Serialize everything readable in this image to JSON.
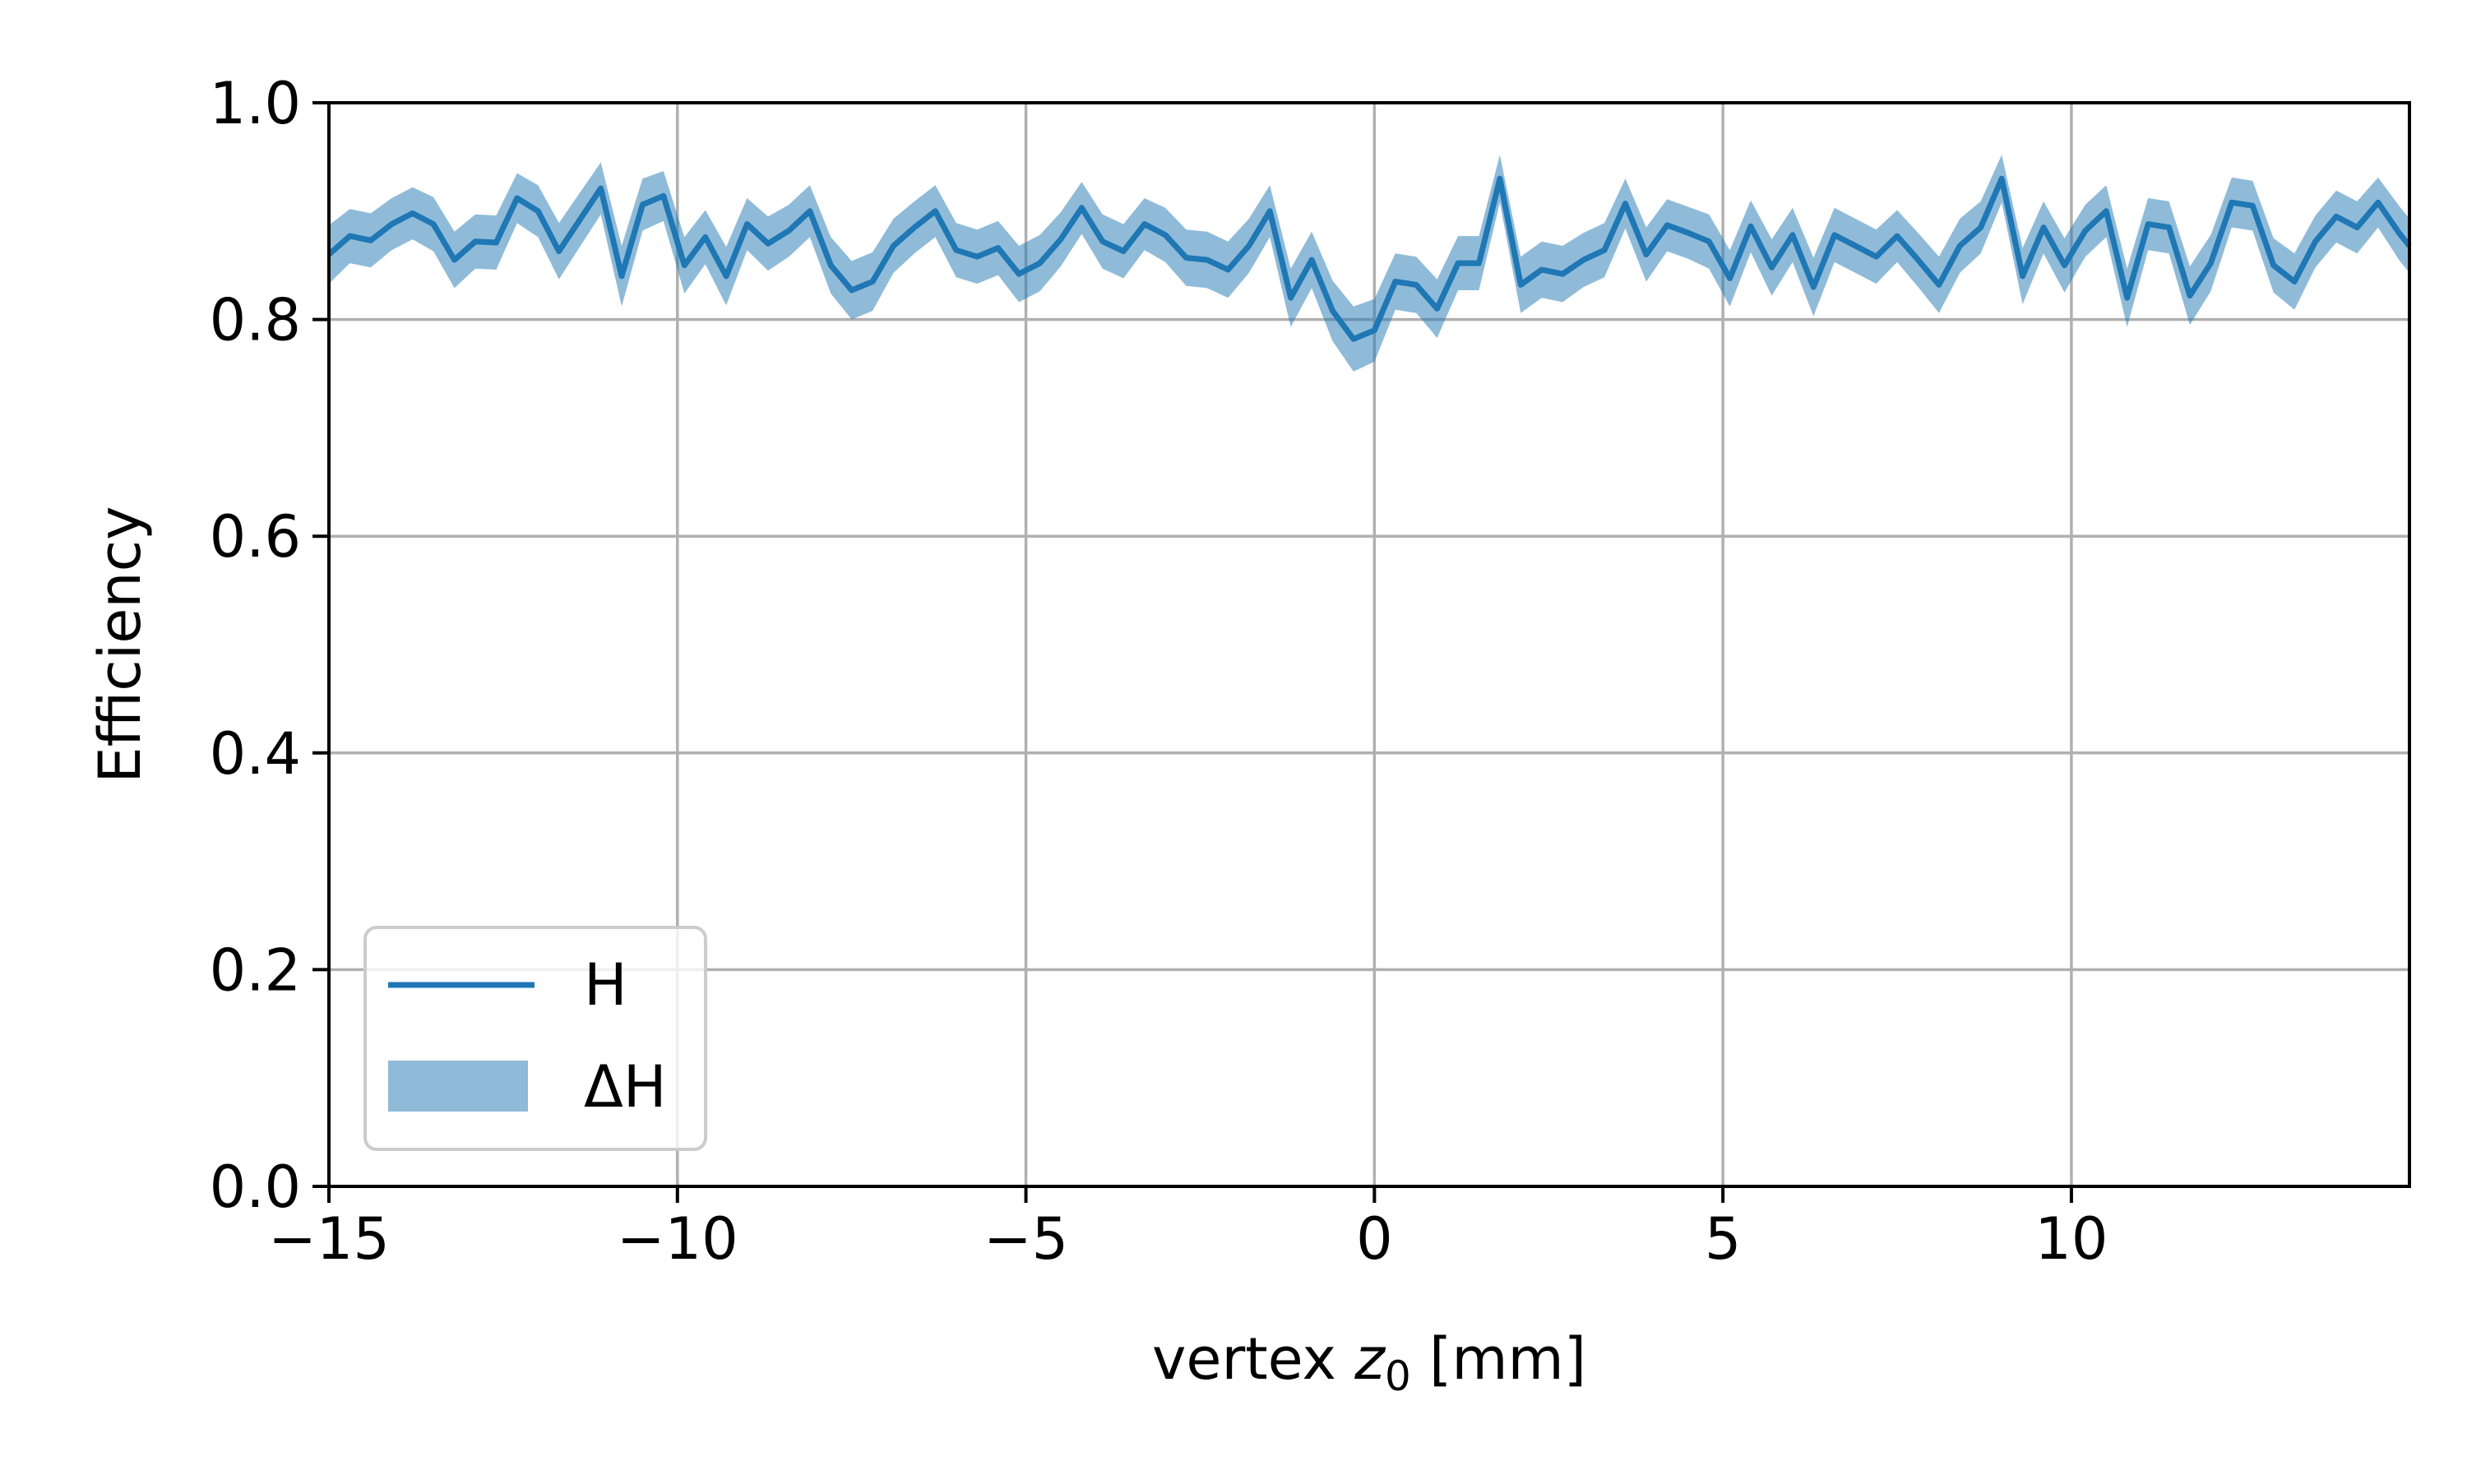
{
  "chart_data": {
    "type": "line",
    "title": "",
    "xlabel_main": "vertex ",
    "xlabel_var": "z",
    "xlabel_sub": "0",
    "xlabel_unit": " [mm]",
    "ylabel": "Efficiency",
    "xlim": [
      -15,
      14.85
    ],
    "ylim": [
      0.0,
      1.0
    ],
    "grid": true,
    "legend_position": "lower-left",
    "x_ticks": [
      -15,
      -10,
      -5,
      0,
      5,
      10
    ],
    "x_tick_labels": [
      "−15",
      "−10",
      "−5",
      "0",
      "5",
      "10"
    ],
    "y_ticks": [
      0.0,
      0.2,
      0.4,
      0.6,
      0.8,
      1.0
    ],
    "y_tick_labels": [
      "0.0",
      "0.2",
      "0.4",
      "0.6",
      "0.8",
      "1.0"
    ],
    "colors": {
      "line": "#1f77b4",
      "band": "#1f77b4",
      "band_opacity": 0.5,
      "grid": "#b0b0b0"
    },
    "series": [
      {
        "name": "H",
        "x": [
          -15.0,
          -14.7,
          -14.4,
          -14.1,
          -13.8,
          -13.5,
          -13.2,
          -12.9,
          -12.6,
          -12.3,
          -12.0,
          -11.7,
          -11.4,
          -11.1,
          -10.8,
          -10.5,
          -10.2,
          -9.9,
          -9.6,
          -9.3,
          -9.0,
          -8.7,
          -8.4,
          -8.1,
          -7.8,
          -7.5,
          -7.2,
          -6.9,
          -6.6,
          -6.3,
          -6.0,
          -5.7,
          -5.4,
          -5.1,
          -4.8,
          -4.5,
          -4.2,
          -3.9,
          -3.6,
          -3.3,
          -3.0,
          -2.7,
          -2.4,
          -2.1,
          -1.8,
          -1.5,
          -1.2,
          -0.9,
          -0.6,
          -0.3,
          0.0,
          0.3,
          0.6,
          0.9,
          1.2,
          1.5,
          1.8,
          2.1,
          2.4,
          2.7,
          3.0,
          3.3,
          3.6,
          3.9,
          4.2,
          4.5,
          4.8,
          5.1,
          5.4,
          5.7,
          6.0,
          6.3,
          6.6,
          6.9,
          7.2,
          7.5,
          7.8,
          8.1,
          8.4,
          8.7,
          9.0,
          9.3,
          9.6,
          9.9,
          10.2,
          10.5,
          10.8,
          11.1,
          11.4,
          11.7,
          12.0,
          12.3,
          12.6,
          12.9,
          13.2,
          13.5,
          13.8,
          14.1,
          14.4,
          14.7,
          14.85
        ],
        "y": [
          0.86,
          0.877,
          0.873,
          0.888,
          0.898,
          0.888,
          0.855,
          0.872,
          0.871,
          0.912,
          0.9,
          0.863,
          0.892,
          0.921,
          0.84,
          0.906,
          0.914,
          0.85,
          0.876,
          0.84,
          0.888,
          0.87,
          0.882,
          0.9,
          0.85,
          0.827,
          0.835,
          0.868,
          0.885,
          0.9,
          0.864,
          0.858,
          0.866,
          0.842,
          0.852,
          0.874,
          0.903,
          0.872,
          0.863,
          0.888,
          0.878,
          0.857,
          0.855,
          0.846,
          0.868,
          0.9,
          0.82,
          0.855,
          0.808,
          0.782,
          0.79,
          0.835,
          0.832,
          0.81,
          0.852,
          0.852,
          0.93,
          0.832,
          0.846,
          0.842,
          0.855,
          0.864,
          0.907,
          0.86,
          0.887,
          0.88,
          0.872,
          0.838,
          0.886,
          0.848,
          0.878,
          0.83,
          0.878,
          0.868,
          0.858,
          0.877,
          0.855,
          0.832,
          0.868,
          0.885,
          0.93,
          0.84,
          0.885,
          0.85,
          0.882,
          0.9,
          0.82,
          0.888,
          0.885,
          0.822,
          0.852,
          0.908,
          0.905,
          0.85,
          0.835,
          0.872,
          0.895,
          0.885,
          0.908,
          0.88,
          0.868
        ],
        "err": [
          0.027,
          0.025,
          0.025,
          0.024,
          0.024,
          0.025,
          0.026,
          0.025,
          0.025,
          0.023,
          0.024,
          0.026,
          0.025,
          0.024,
          0.028,
          0.024,
          0.023,
          0.026,
          0.025,
          0.027,
          0.024,
          0.025,
          0.024,
          0.024,
          0.026,
          0.027,
          0.027,
          0.025,
          0.024,
          0.024,
          0.025,
          0.025,
          0.025,
          0.026,
          0.026,
          0.025,
          0.024,
          0.025,
          0.025,
          0.024,
          0.025,
          0.026,
          0.026,
          0.026,
          0.025,
          0.024,
          0.027,
          0.026,
          0.028,
          0.03,
          0.029,
          0.026,
          0.026,
          0.027,
          0.025,
          0.025,
          0.022,
          0.026,
          0.026,
          0.026,
          0.025,
          0.025,
          0.023,
          0.025,
          0.024,
          0.024,
          0.025,
          0.026,
          0.024,
          0.026,
          0.025,
          0.027,
          0.025,
          0.025,
          0.025,
          0.024,
          0.025,
          0.026,
          0.025,
          0.024,
          0.022,
          0.026,
          0.024,
          0.025,
          0.024,
          0.024,
          0.027,
          0.024,
          0.024,
          0.027,
          0.026,
          0.023,
          0.023,
          0.025,
          0.026,
          0.024,
          0.024,
          0.024,
          0.023,
          0.025,
          0.025
        ]
      }
    ],
    "legend": [
      {
        "label": "H",
        "kind": "line"
      },
      {
        "label": "ΔH",
        "kind": "band"
      }
    ]
  }
}
